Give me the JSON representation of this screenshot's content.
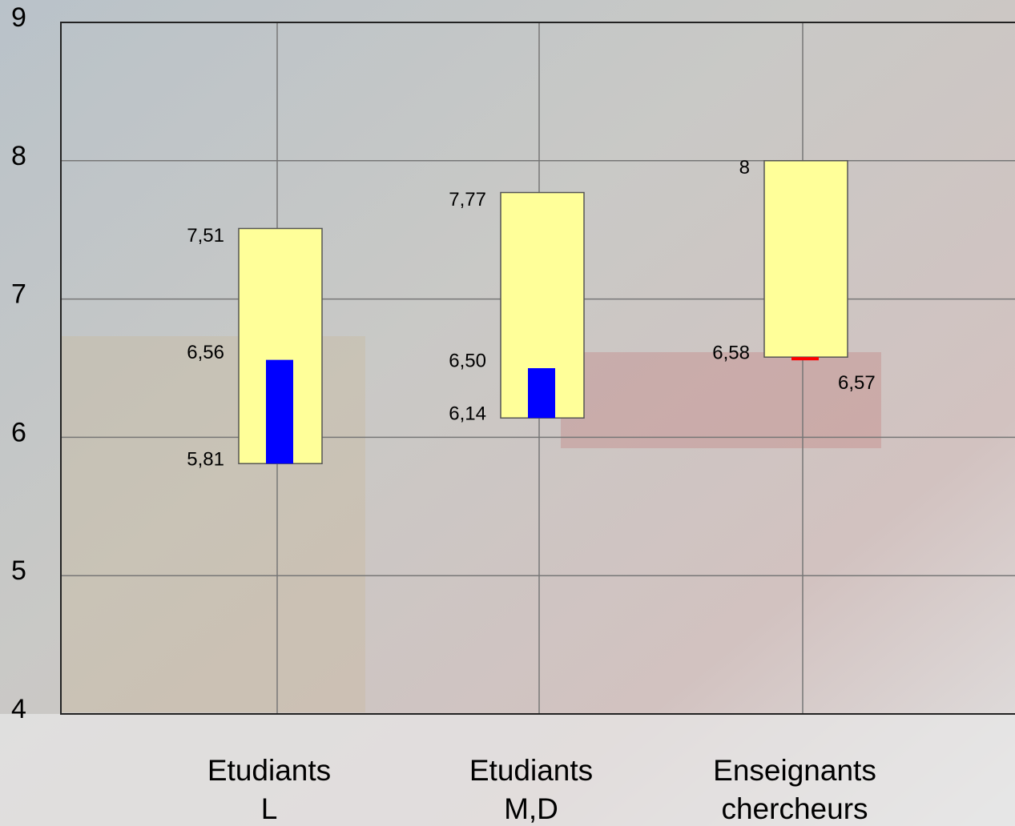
{
  "chart_data": {
    "type": "floating-bar",
    "categories": [
      [
        "Etudiants",
        "L"
      ],
      [
        "Etudiants",
        "M,D"
      ],
      [
        "Enseignants",
        "chercheurs"
      ]
    ],
    "low": [
      5.81,
      6.14,
      6.58
    ],
    "low_labels": [
      "5,81",
      "6,14",
      "6,58"
    ],
    "high": [
      7.51,
      7.77,
      8
    ],
    "high_labels": [
      "7,51",
      "7,77",
      "8"
    ],
    "values": [
      6.56,
      6.5,
      6.57
    ],
    "value_labels": [
      "6,56",
      "6,50",
      "6,57"
    ],
    "range_color": "#ffff99",
    "colors": [
      "#0000ff",
      "#0000ff",
      "#ff0000"
    ],
    "ylim": [
      4,
      9
    ],
    "yticks": [
      4,
      5,
      6,
      7,
      8,
      9
    ],
    "grid": true
  }
}
